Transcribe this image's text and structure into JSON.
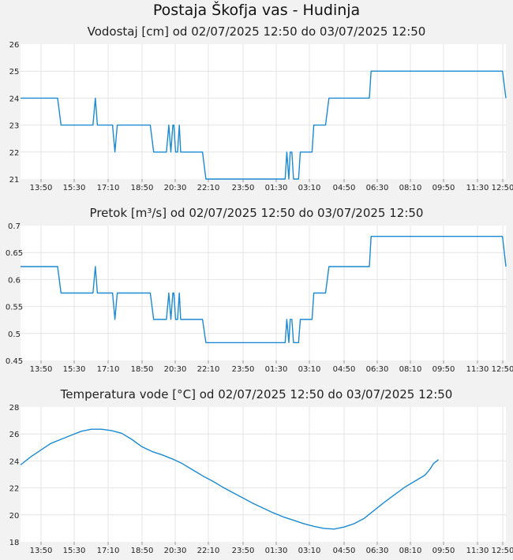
{
  "main_title": "Postaja Škofja vas - Hudinja",
  "chart_data": [
    {
      "type": "line",
      "title": "Vodostaj [cm] od 02/07/2025 12:50 do 03/07/2025 12:50",
      "xlabel": "",
      "ylabel": "",
      "ylim": [
        21,
        26
      ],
      "yticks": [
        "21",
        "22",
        "23",
        "24",
        "25",
        "26"
      ],
      "xticks": [
        "13:50",
        "15:30",
        "17:10",
        "18:50",
        "20:30",
        "22:10",
        "23:50",
        "01:30",
        "03:10",
        "04:50",
        "06:30",
        "08:10",
        "09:50",
        "11:30",
        "12:50"
      ],
      "grid": true,
      "color": "#1a8ad4",
      "series": [
        {
          "points": [
            [
              0,
              24
            ],
            [
              110,
              24
            ],
            [
              120,
              23
            ],
            [
              215,
              23
            ],
            [
              222,
              24
            ],
            [
              228,
              23
            ],
            [
              273,
              23
            ],
            [
              280,
              22
            ],
            [
              287,
              23
            ],
            [
              385,
              23
            ],
            [
              395,
              22
            ],
            [
              433,
              22
            ],
            [
              440,
              23
            ],
            [
              446,
              22
            ],
            [
              452,
              23
            ],
            [
              455,
              23
            ],
            [
              460,
              22
            ],
            [
              466,
              22
            ],
            [
              471,
              23
            ],
            [
              475,
              22
            ],
            [
              540,
              22
            ],
            [
              550,
              21
            ],
            [
              785,
              21
            ],
            [
              790,
              22
            ],
            [
              796,
              21
            ],
            [
              800,
              22
            ],
            [
              805,
              22
            ],
            [
              810,
              21
            ],
            [
              825,
              21
            ],
            [
              830,
              22
            ],
            [
              865,
              22
            ],
            [
              870,
              23
            ],
            [
              905,
              23
            ],
            [
              915,
              24
            ],
            [
              1035,
              24
            ],
            [
              1040,
              25
            ],
            [
              1430,
              25
            ],
            [
              1440,
              24
            ]
          ]
        }
      ]
    },
    {
      "type": "line",
      "title": "Pretok [m³/s] od 02/07/2025 12:50 do 03/07/2025 12:50",
      "xlabel": "",
      "ylabel": "",
      "ylim": [
        0.45,
        0.7
      ],
      "yticks": [
        "0.45",
        "0.5",
        "0.55",
        "0.6",
        "0.65",
        "0.7"
      ],
      "xticks": [
        "13:50",
        "15:30",
        "17:10",
        "18:50",
        "20:30",
        "22:10",
        "23:50",
        "01:30",
        "03:10",
        "04:50",
        "06:30",
        "08:10",
        "09:50",
        "11:30",
        "12:50"
      ],
      "grid": true,
      "color": "#1a8ad4",
      "series": [
        {
          "points": [
            [
              0,
              0.624
            ],
            [
              110,
              0.624
            ],
            [
              120,
              0.575
            ],
            [
              215,
              0.575
            ],
            [
              222,
              0.624
            ],
            [
              228,
              0.575
            ],
            [
              273,
              0.575
            ],
            [
              280,
              0.526
            ],
            [
              287,
              0.575
            ],
            [
              385,
              0.575
            ],
            [
              395,
              0.526
            ],
            [
              433,
              0.526
            ],
            [
              440,
              0.575
            ],
            [
              446,
              0.526
            ],
            [
              452,
              0.575
            ],
            [
              455,
              0.575
            ],
            [
              460,
              0.526
            ],
            [
              466,
              0.526
            ],
            [
              471,
              0.575
            ],
            [
              475,
              0.526
            ],
            [
              540,
              0.526
            ],
            [
              550,
              0.483
            ],
            [
              785,
              0.483
            ],
            [
              790,
              0.526
            ],
            [
              796,
              0.483
            ],
            [
              800,
              0.526
            ],
            [
              805,
              0.526
            ],
            [
              810,
              0.483
            ],
            [
              825,
              0.483
            ],
            [
              830,
              0.526
            ],
            [
              865,
              0.526
            ],
            [
              870,
              0.575
            ],
            [
              905,
              0.575
            ],
            [
              915,
              0.624
            ],
            [
              1035,
              0.624
            ],
            [
              1040,
              0.68
            ],
            [
              1430,
              0.68
            ],
            [
              1440,
              0.624
            ]
          ]
        }
      ]
    },
    {
      "type": "line",
      "title": "Temperatura vode [°C] od 02/07/2025 12:50 do 03/07/2025 12:50",
      "xlabel": "",
      "ylabel": "",
      "ylim": [
        18,
        28
      ],
      "yticks": [
        "18",
        "20",
        "22",
        "24",
        "26",
        "28"
      ],
      "xticks": [
        "13:50",
        "15:30",
        "17:10",
        "18:50",
        "20:30",
        "22:10",
        "23:50",
        "01:30",
        "03:10",
        "04:50",
        "06:30",
        "08:10",
        "09:50",
        "11:30",
        "12:50"
      ],
      "grid": true,
      "color": "#1a8ad4",
      "series": [
        {
          "points": [
            [
              0,
              23.7
            ],
            [
              30,
              24.3
            ],
            [
              60,
              24.8
            ],
            [
              90,
              25.3
            ],
            [
              120,
              25.6
            ],
            [
              150,
              25.9
            ],
            [
              180,
              26.2
            ],
            [
              210,
              26.35
            ],
            [
              240,
              26.35
            ],
            [
              270,
              26.25
            ],
            [
              300,
              26.05
            ],
            [
              330,
              25.6
            ],
            [
              360,
              25.05
            ],
            [
              390,
              24.7
            ],
            [
              420,
              24.45
            ],
            [
              450,
              24.15
            ],
            [
              480,
              23.8
            ],
            [
              510,
              23.35
            ],
            [
              540,
              22.9
            ],
            [
              570,
              22.5
            ],
            [
              600,
              22.05
            ],
            [
              630,
              21.65
            ],
            [
              660,
              21.25
            ],
            [
              690,
              20.85
            ],
            [
              720,
              20.5
            ],
            [
              750,
              20.15
            ],
            [
              780,
              19.85
            ],
            [
              810,
              19.6
            ],
            [
              840,
              19.35
            ],
            [
              870,
              19.15
            ],
            [
              900,
              19.0
            ],
            [
              930,
              18.95
            ],
            [
              960,
              19.1
            ],
            [
              990,
              19.35
            ],
            [
              1020,
              19.75
            ],
            [
              1050,
              20.35
            ],
            [
              1080,
              20.95
            ],
            [
              1110,
              21.5
            ],
            [
              1140,
              22.05
            ],
            [
              1170,
              22.5
            ],
            [
              1200,
              22.95
            ],
            [
              1215,
              23.4
            ],
            [
              1225,
              23.8
            ],
            [
              1240,
              24.1
            ]
          ]
        }
      ]
    }
  ]
}
